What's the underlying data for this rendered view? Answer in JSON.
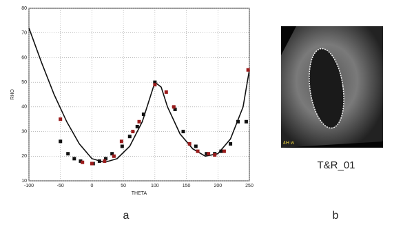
{
  "chart_data": {
    "type": "scatter",
    "xlabel": "THETA",
    "ylabel": "RHO",
    "xlim": [
      -100,
      250
    ],
    "ylim": [
      10,
      80
    ],
    "xticks": [
      -100,
      -50,
      0,
      50,
      100,
      150,
      200,
      250
    ],
    "yticks": [
      10,
      20,
      30,
      40,
      50,
      60,
      70,
      80
    ],
    "grid": true,
    "series": [
      {
        "style": "line",
        "color": "#111111",
        "x": [
          -100,
          -80,
          -60,
          -40,
          -20,
          0,
          20,
          40,
          60,
          80,
          90,
          100,
          110,
          120,
          140,
          160,
          180,
          200,
          220,
          240,
          250
        ],
        "values": [
          72,
          58,
          45,
          34,
          25,
          19,
          17.5,
          19,
          24,
          34,
          42,
          50,
          48,
          40,
          29,
          23,
          20,
          21,
          27,
          40,
          55
        ]
      },
      {
        "style": "marker",
        "color": "#111111",
        "x": [
          -50,
          -38,
          -28,
          -18,
          2,
          12,
          22,
          32,
          48,
          60,
          72,
          82,
          100,
          132,
          145,
          165,
          182,
          195,
          205,
          220,
          232,
          245
        ],
        "values": [
          26,
          21,
          19,
          18,
          17,
          18,
          19,
          21,
          24,
          28,
          32,
          37,
          50,
          39,
          30,
          24,
          21,
          21,
          22,
          25,
          34,
          34
        ]
      },
      {
        "style": "marker",
        "color": "#9b1c1c",
        "x": [
          -50,
          -15,
          0,
          20,
          35,
          47,
          65,
          75,
          100,
          118,
          130,
          155,
          168,
          185,
          195,
          210,
          248
        ],
        "values": [
          35,
          17.5,
          17,
          18,
          20,
          26,
          30,
          34,
          49,
          46,
          40,
          25,
          22,
          21,
          20.5,
          22,
          55
        ]
      }
    ]
  },
  "figure": {
    "panel_a": "a",
    "panel_b": "b",
    "image_caption": "T&R_01",
    "image_overlay": "4H w"
  }
}
